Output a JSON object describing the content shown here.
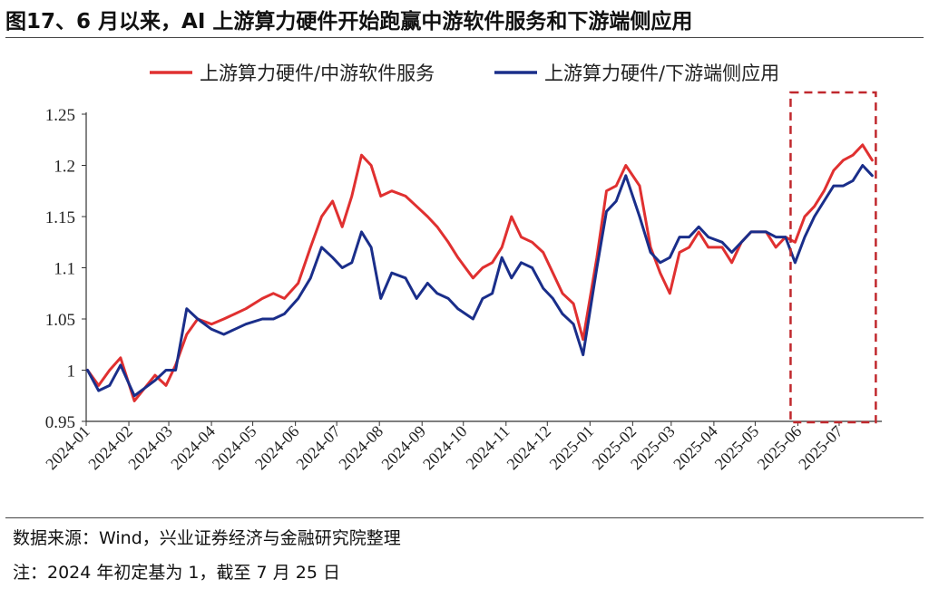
{
  "title": "图17、6 月以来，AI 上游算力硬件开始跑赢中游软件服务和下游端侧应用",
  "source": "数据来源：Wind，兴业证券经济与金融研究院整理",
  "note": "注：2024 年初定基为 1，截至 7 月 25 日",
  "chart_data": {
    "type": "line",
    "title": "",
    "xlabel": "",
    "ylabel": "",
    "ylim": [
      0.95,
      1.25
    ],
    "yticks": [
      "0.95",
      "1",
      "1.05",
      "1.1",
      "1.15",
      "1.2",
      "1.25"
    ],
    "xticks": [
      "2024-01",
      "2024-02",
      "2024-03",
      "2024-04",
      "2024-05",
      "2024-06",
      "2024-07",
      "2024-08",
      "2024-09",
      "2024-10",
      "2024-11",
      "2024-12",
      "2025-01",
      "2025-02",
      "2025-03",
      "2025-04",
      "2025-05",
      "2025-06",
      "2025-07"
    ],
    "grid": false,
    "legend_position": "top",
    "highlight_box": {
      "from": "2025-06-01",
      "to": "2025-07-25",
      "style": "dashed",
      "color": "#c0282d"
    },
    "series": [
      {
        "name": "上游算力硬件/中游软件服务",
        "color": "#e03030",
        "x": [
          "2024-01-02",
          "2024-01-10",
          "2024-01-18",
          "2024-01-26",
          "2024-02-05",
          "2024-02-20",
          "2024-02-28",
          "2024-03-06",
          "2024-03-14",
          "2024-03-22",
          "2024-04-01",
          "2024-04-10",
          "2024-04-18",
          "2024-04-26",
          "2024-05-08",
          "2024-05-16",
          "2024-05-24",
          "2024-06-03",
          "2024-06-12",
          "2024-06-20",
          "2024-06-28",
          "2024-07-05",
          "2024-07-12",
          "2024-07-19",
          "2024-07-26",
          "2024-08-02",
          "2024-08-10",
          "2024-08-20",
          "2024-08-28",
          "2024-09-05",
          "2024-09-12",
          "2024-09-20",
          "2024-09-27",
          "2024-10-08",
          "2024-10-15",
          "2024-10-22",
          "2024-10-29",
          "2024-11-05",
          "2024-11-12",
          "2024-11-20",
          "2024-11-28",
          "2024-12-05",
          "2024-12-12",
          "2024-12-20",
          "2024-12-27",
          "2025-01-06",
          "2025-01-13",
          "2025-01-20",
          "2025-01-27",
          "2025-02-06",
          "2025-02-14",
          "2025-02-21",
          "2025-02-28",
          "2025-03-07",
          "2025-03-14",
          "2025-03-21",
          "2025-03-28",
          "2025-04-07",
          "2025-04-14",
          "2025-04-21",
          "2025-04-28",
          "2025-05-09",
          "2025-05-16",
          "2025-05-23",
          "2025-05-30",
          "2025-06-06",
          "2025-06-13",
          "2025-06-20",
          "2025-06-27",
          "2025-07-04",
          "2025-07-11",
          "2025-07-18",
          "2025-07-25"
        ],
        "values": [
          1.0,
          0.985,
          1.0,
          1.012,
          0.97,
          0.995,
          0.985,
          1.005,
          1.035,
          1.05,
          1.045,
          1.05,
          1.055,
          1.06,
          1.07,
          1.075,
          1.07,
          1.085,
          1.12,
          1.15,
          1.165,
          1.14,
          1.17,
          1.21,
          1.2,
          1.17,
          1.175,
          1.17,
          1.16,
          1.15,
          1.14,
          1.125,
          1.11,
          1.09,
          1.1,
          1.105,
          1.12,
          1.15,
          1.13,
          1.125,
          1.115,
          1.095,
          1.075,
          1.065,
          1.03,
          1.11,
          1.175,
          1.18,
          1.2,
          1.18,
          1.12,
          1.095,
          1.075,
          1.115,
          1.12,
          1.135,
          1.12,
          1.12,
          1.105,
          1.125,
          1.135,
          1.135,
          1.12,
          1.13,
          1.125,
          1.15,
          1.16,
          1.175,
          1.195,
          1.205,
          1.21,
          1.22,
          1.205
        ]
      },
      {
        "name": "上游算力硬件/下游端侧应用",
        "color": "#1a2e8a",
        "x": [
          "2024-01-02",
          "2024-01-10",
          "2024-01-18",
          "2024-01-26",
          "2024-02-05",
          "2024-02-20",
          "2024-02-28",
          "2024-03-06",
          "2024-03-14",
          "2024-03-22",
          "2024-04-01",
          "2024-04-10",
          "2024-04-18",
          "2024-04-26",
          "2024-05-08",
          "2024-05-16",
          "2024-05-24",
          "2024-06-03",
          "2024-06-12",
          "2024-06-20",
          "2024-06-28",
          "2024-07-05",
          "2024-07-12",
          "2024-07-19",
          "2024-07-26",
          "2024-08-02",
          "2024-08-10",
          "2024-08-20",
          "2024-08-28",
          "2024-09-05",
          "2024-09-12",
          "2024-09-20",
          "2024-09-27",
          "2024-10-08",
          "2024-10-15",
          "2024-10-22",
          "2024-10-29",
          "2024-11-05",
          "2024-11-12",
          "2024-11-20",
          "2024-11-28",
          "2024-12-05",
          "2024-12-12",
          "2024-12-20",
          "2024-12-27",
          "2025-01-06",
          "2025-01-13",
          "2025-01-20",
          "2025-01-27",
          "2025-02-06",
          "2025-02-14",
          "2025-02-21",
          "2025-02-28",
          "2025-03-07",
          "2025-03-14",
          "2025-03-21",
          "2025-03-28",
          "2025-04-07",
          "2025-04-14",
          "2025-04-21",
          "2025-04-28",
          "2025-05-09",
          "2025-05-16",
          "2025-05-23",
          "2025-05-30",
          "2025-06-06",
          "2025-06-13",
          "2025-06-20",
          "2025-06-27",
          "2025-07-04",
          "2025-07-11",
          "2025-07-18",
          "2025-07-25"
        ],
        "values": [
          1.0,
          0.98,
          0.985,
          1.005,
          0.975,
          0.99,
          1.0,
          1.0,
          1.06,
          1.05,
          1.04,
          1.035,
          1.04,
          1.045,
          1.05,
          1.05,
          1.055,
          1.07,
          1.09,
          1.12,
          1.11,
          1.1,
          1.105,
          1.135,
          1.12,
          1.07,
          1.095,
          1.09,
          1.07,
          1.085,
          1.075,
          1.07,
          1.06,
          1.05,
          1.07,
          1.075,
          1.11,
          1.09,
          1.105,
          1.1,
          1.08,
          1.07,
          1.055,
          1.045,
          1.015,
          1.1,
          1.155,
          1.165,
          1.19,
          1.15,
          1.115,
          1.105,
          1.11,
          1.13,
          1.13,
          1.14,
          1.13,
          1.125,
          1.115,
          1.125,
          1.135,
          1.135,
          1.13,
          1.13,
          1.105,
          1.13,
          1.15,
          1.165,
          1.18,
          1.18,
          1.185,
          1.2,
          1.19
        ]
      }
    ]
  }
}
